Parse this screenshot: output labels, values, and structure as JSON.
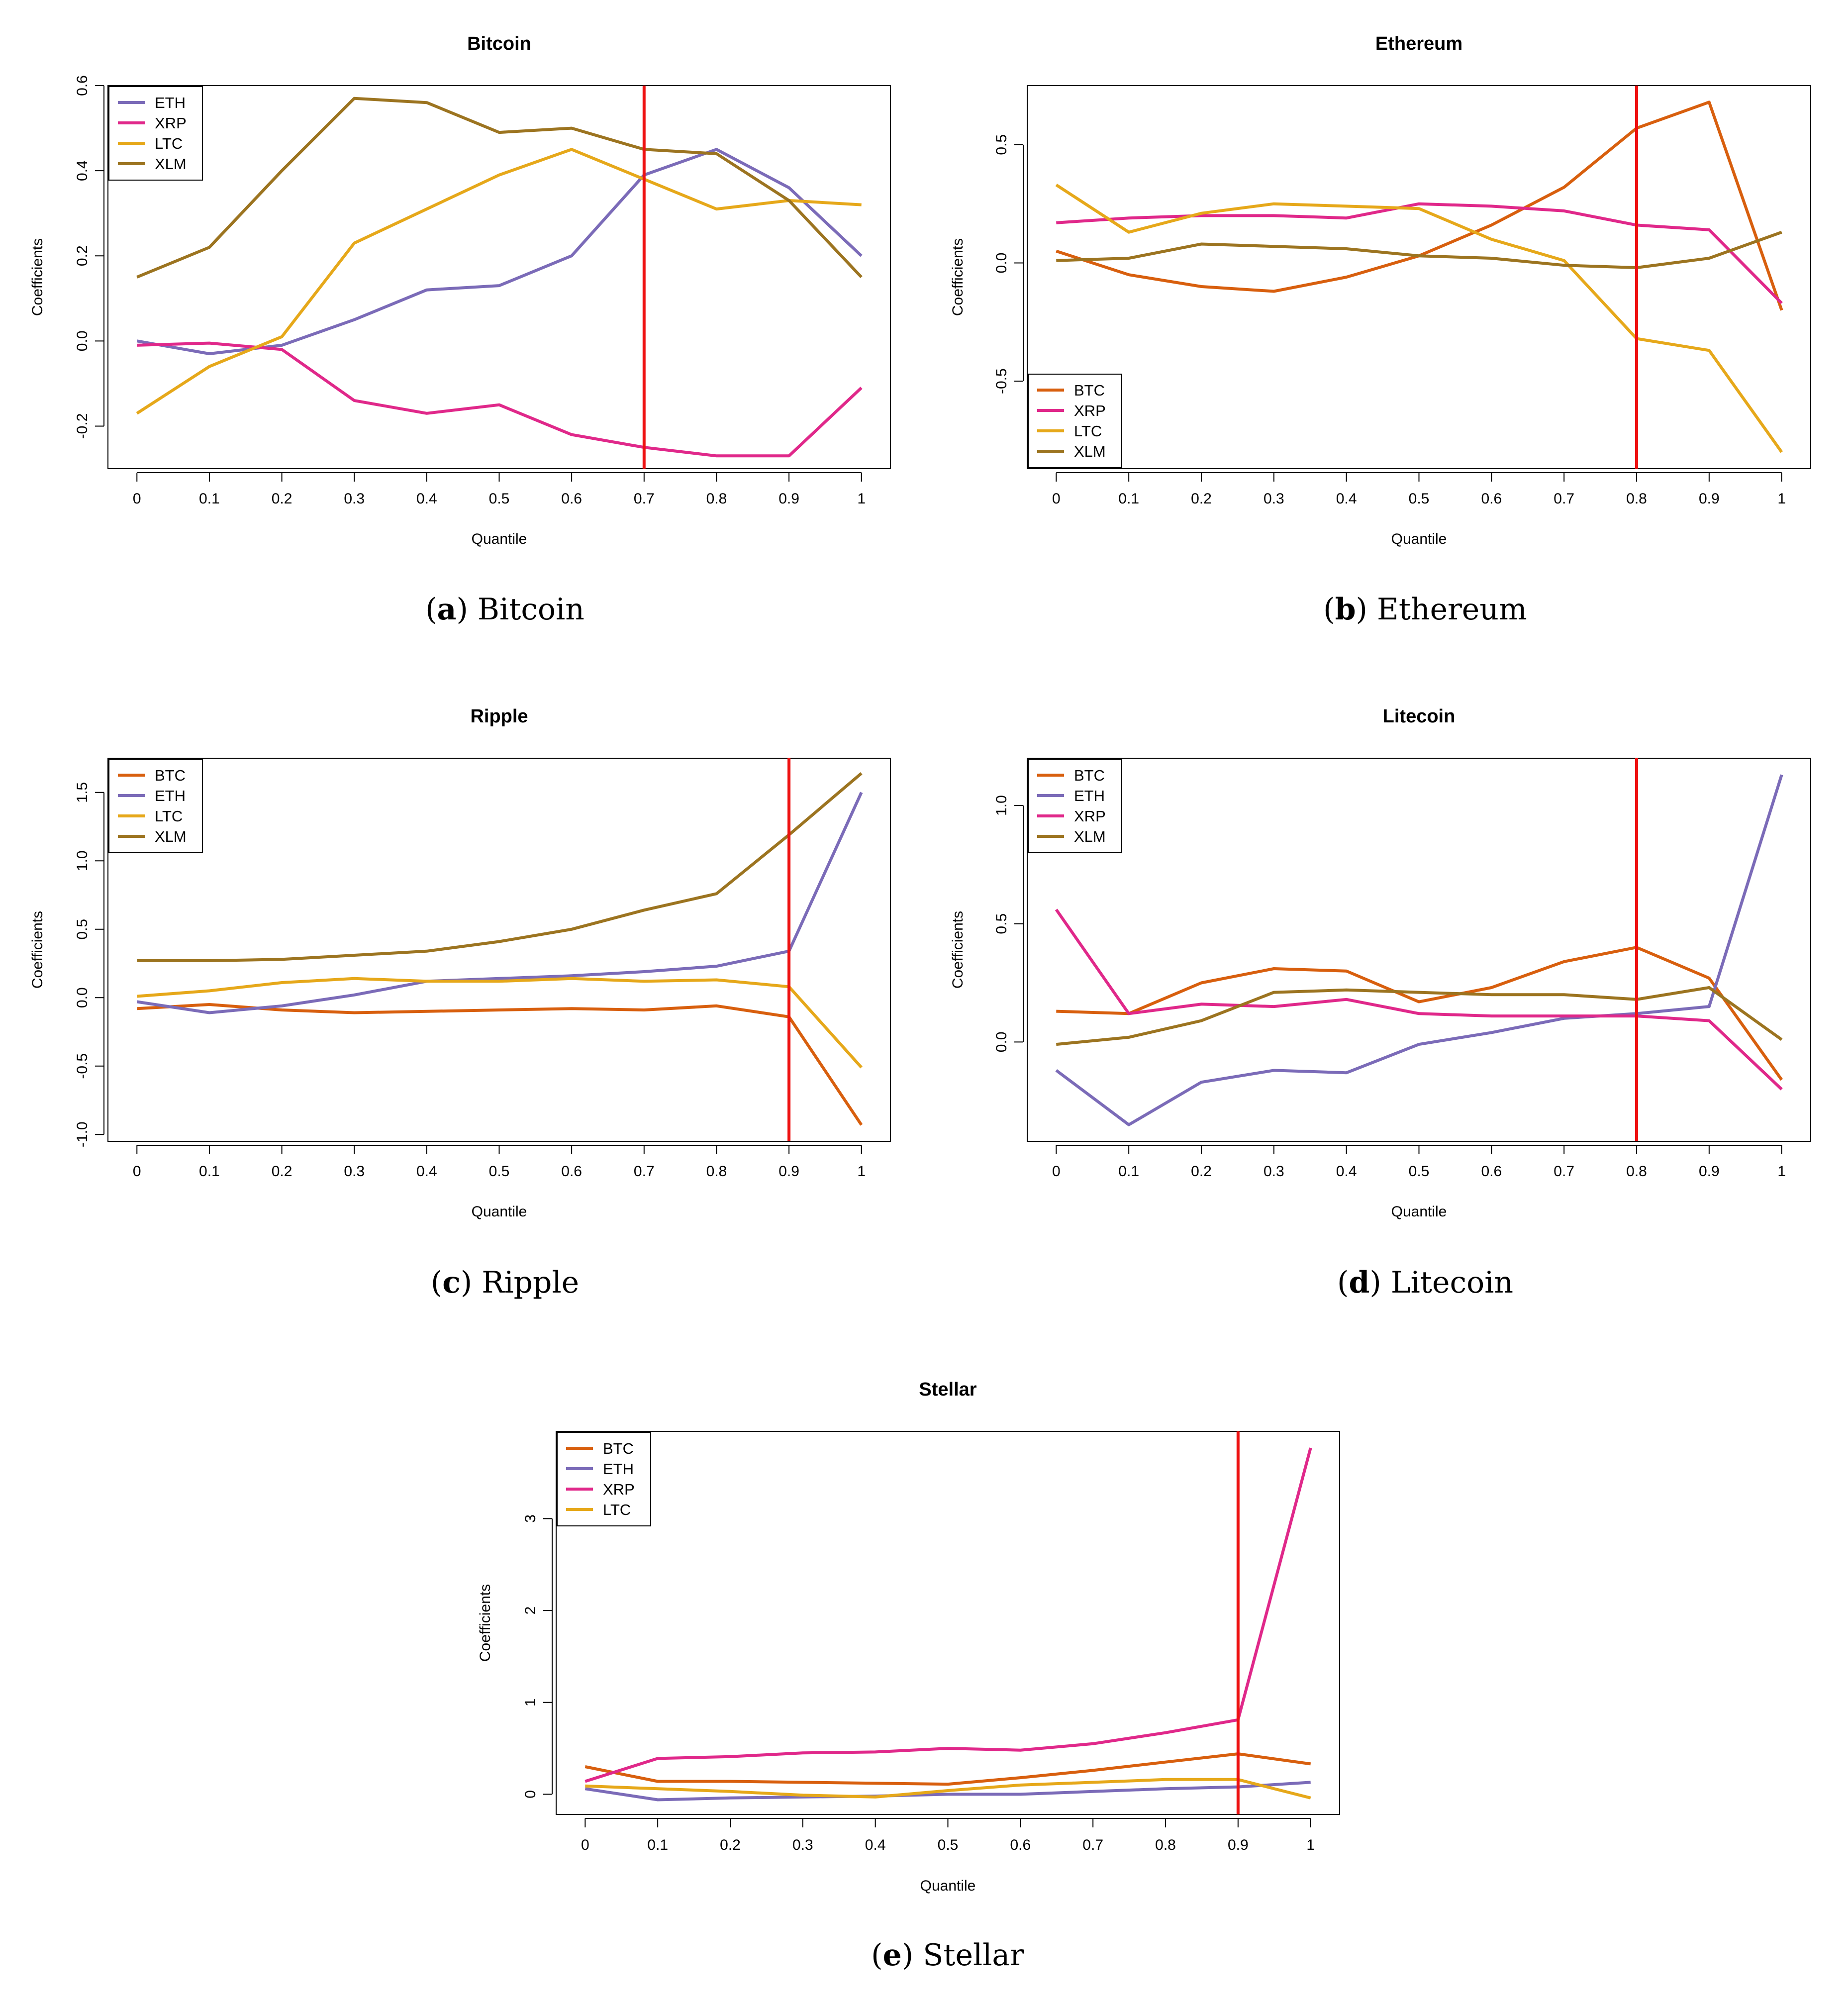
{
  "chart_data": [
    {
      "type": "line",
      "title": "Bitcoin",
      "caption_letter": "a",
      "caption_text": "Bitcoin",
      "xlabel": "Quantile",
      "ylabel": "Coefficients",
      "x": [
        0,
        0.1,
        0.2,
        0.3,
        0.4,
        0.5,
        0.6,
        0.7,
        0.8,
        0.9,
        1
      ],
      "xtick_labels": [
        "0",
        "0.1",
        "0.2",
        "0.3",
        "0.4",
        "0.5",
        "0.6",
        "0.7",
        "0.8",
        "0.9",
        "1"
      ],
      "xlim": [
        -0.04,
        1.04
      ],
      "ylim": [
        -0.3,
        0.6
      ],
      "yticks": [
        -0.2,
        0.0,
        0.2,
        0.4,
        0.6
      ],
      "ytick_labels": [
        "-0.2",
        "0.0",
        "0.2",
        "0.4",
        "0.6"
      ],
      "vline": 0.7,
      "legend_position": "top-left",
      "series": [
        {
          "name": "ETH",
          "color": "#7b6bb8",
          "values": [
            0.0,
            -0.03,
            -0.01,
            0.05,
            0.12,
            0.13,
            0.2,
            0.39,
            0.45,
            0.36,
            0.2
          ]
        },
        {
          "name": "XRP",
          "color": "#e0288a",
          "values": [
            -0.01,
            -0.005,
            -0.02,
            -0.14,
            -0.17,
            -0.15,
            -0.22,
            -0.25,
            -0.27,
            -0.27,
            -0.11
          ]
        },
        {
          "name": "LTC",
          "color": "#e6a81a",
          "values": [
            -0.17,
            -0.06,
            0.01,
            0.23,
            0.31,
            0.39,
            0.45,
            0.38,
            0.31,
            0.33,
            0.32
          ]
        },
        {
          "name": "XLM",
          "color": "#9c7420",
          "values": [
            0.15,
            0.22,
            0.4,
            0.57,
            0.56,
            0.49,
            0.5,
            0.45,
            0.44,
            0.33,
            0.15
          ]
        }
      ]
    },
    {
      "type": "line",
      "title": "Ethereum",
      "caption_letter": "b",
      "caption_text": "Ethereum",
      "xlabel": "Quantile",
      "ylabel": "Coefficients",
      "x": [
        0,
        0.1,
        0.2,
        0.3,
        0.4,
        0.5,
        0.6,
        0.7,
        0.8,
        0.9,
        1
      ],
      "xtick_labels": [
        "0",
        "0.1",
        "0.2",
        "0.3",
        "0.4",
        "0.5",
        "0.6",
        "0.7",
        "0.8",
        "0.9",
        "1"
      ],
      "xlim": [
        -0.04,
        1.04
      ],
      "ylim": [
        -0.87,
        0.75
      ],
      "yticks": [
        -0.5,
        0.0,
        0.5
      ],
      "ytick_labels": [
        "-0.5",
        "0.0",
        "0.5"
      ],
      "vline": 0.8,
      "legend_position": "bottom-left",
      "series": [
        {
          "name": "BTC",
          "color": "#d85f0e",
          "values": [
            0.05,
            -0.05,
            -0.1,
            -0.12,
            -0.06,
            0.03,
            0.16,
            0.32,
            0.57,
            0.68,
            -0.2
          ]
        },
        {
          "name": "XRP",
          "color": "#e0288a",
          "values": [
            0.17,
            0.19,
            0.2,
            0.2,
            0.19,
            0.25,
            0.24,
            0.22,
            0.16,
            0.14,
            -0.17
          ]
        },
        {
          "name": "LTC",
          "color": "#e6a81a",
          "values": [
            0.33,
            0.13,
            0.21,
            0.25,
            0.24,
            0.23,
            0.1,
            0.01,
            -0.32,
            -0.37,
            -0.8
          ]
        },
        {
          "name": "XLM",
          "color": "#9c7420",
          "values": [
            0.01,
            0.02,
            0.08,
            0.07,
            0.06,
            0.03,
            0.02,
            -0.01,
            -0.02,
            0.02,
            0.13
          ]
        }
      ]
    },
    {
      "type": "line",
      "title": "Ripple",
      "caption_letter": "c",
      "caption_text": "Ripple",
      "xlabel": "Quantile",
      "ylabel": "Coefficients",
      "x": [
        0,
        0.1,
        0.2,
        0.3,
        0.4,
        0.5,
        0.6,
        0.7,
        0.8,
        0.9,
        1
      ],
      "xtick_labels": [
        "0",
        "0.1",
        "0.2",
        "0.3",
        "0.4",
        "0.5",
        "0.6",
        "0.7",
        "0.8",
        "0.9",
        "1"
      ],
      "xlim": [
        -0.04,
        1.04
      ],
      "ylim": [
        -1.05,
        1.75
      ],
      "yticks": [
        -1.0,
        -0.5,
        0.0,
        0.5,
        1.0,
        1.5
      ],
      "ytick_labels": [
        "-1.0",
        "-0.5",
        "0.0",
        "0.5",
        "1.0",
        "1.5"
      ],
      "vline": 0.9,
      "legend_position": "top-left",
      "series": [
        {
          "name": "BTC",
          "color": "#d85f0e",
          "values": [
            -0.08,
            -0.05,
            -0.09,
            -0.11,
            -0.1,
            -0.09,
            -0.08,
            -0.09,
            -0.06,
            -0.14,
            -0.93
          ]
        },
        {
          "name": "ETH",
          "color": "#7b6bb8",
          "values": [
            -0.03,
            -0.11,
            -0.06,
            0.02,
            0.12,
            0.14,
            0.16,
            0.19,
            0.23,
            0.34,
            1.5
          ]
        },
        {
          "name": "LTC",
          "color": "#e6a81a",
          "values": [
            0.01,
            0.05,
            0.11,
            0.14,
            0.12,
            0.12,
            0.14,
            0.12,
            0.13,
            0.08,
            -0.51
          ]
        },
        {
          "name": "XLM",
          "color": "#9c7420",
          "values": [
            0.27,
            0.27,
            0.28,
            0.31,
            0.34,
            0.41,
            0.5,
            0.64,
            0.76,
            1.19,
            1.64
          ]
        }
      ]
    },
    {
      "type": "line",
      "title": "Litecoin",
      "caption_letter": "d",
      "caption_text": "Litecoin",
      "xlabel": "Quantile",
      "ylabel": "Coefficients",
      "x": [
        0,
        0.1,
        0.2,
        0.3,
        0.4,
        0.5,
        0.6,
        0.7,
        0.8,
        0.9,
        1
      ],
      "xtick_labels": [
        "0",
        "0.1",
        "0.2",
        "0.3",
        "0.4",
        "0.5",
        "0.6",
        "0.7",
        "0.8",
        "0.9",
        "1"
      ],
      "xlim": [
        -0.04,
        1.04
      ],
      "ylim": [
        -0.42,
        1.2
      ],
      "yticks": [
        0.0,
        0.5,
        1.0
      ],
      "ytick_labels": [
        "0.0",
        "0.5",
        "1.0"
      ],
      "vline": 0.8,
      "legend_position": "top-left",
      "series": [
        {
          "name": "BTC",
          "color": "#d85f0e",
          "values": [
            0.13,
            0.12,
            0.25,
            0.31,
            0.3,
            0.17,
            0.23,
            0.34,
            0.4,
            0.27,
            -0.16
          ]
        },
        {
          "name": "ETH",
          "color": "#7b6bb8",
          "values": [
            -0.12,
            -0.35,
            -0.17,
            -0.12,
            -0.13,
            -0.01,
            0.04,
            0.1,
            0.12,
            0.15,
            1.13
          ]
        },
        {
          "name": "XRP",
          "color": "#e0288a",
          "values": [
            0.56,
            0.12,
            0.16,
            0.15,
            0.18,
            0.12,
            0.11,
            0.11,
            0.11,
            0.09,
            -0.2
          ]
        },
        {
          "name": "XLM",
          "color": "#9c7420",
          "values": [
            -0.01,
            0.02,
            0.09,
            0.21,
            0.22,
            0.21,
            0.2,
            0.2,
            0.18,
            0.23,
            0.01
          ]
        }
      ]
    },
    {
      "type": "line",
      "title": "Stellar",
      "caption_letter": "e",
      "caption_text": "Stellar",
      "xlabel": "Quantile",
      "ylabel": "Coefficients",
      "x": [
        0,
        0.1,
        0.2,
        0.3,
        0.4,
        0.5,
        0.6,
        0.7,
        0.8,
        0.9,
        1
      ],
      "xtick_labels": [
        "0",
        "0.1",
        "0.2",
        "0.3",
        "0.4",
        "0.5",
        "0.6",
        "0.7",
        "0.8",
        "0.9",
        "1"
      ],
      "xlim": [
        -0.04,
        1.04
      ],
      "ylim": [
        -0.22,
        3.95
      ],
      "yticks": [
        0,
        1,
        2,
        3
      ],
      "ytick_labels": [
        "0",
        "1",
        "2",
        "3"
      ],
      "vline": 0.9,
      "legend_position": "top-left",
      "series": [
        {
          "name": "BTC",
          "color": "#d85f0e",
          "values": [
            0.3,
            0.14,
            0.14,
            0.13,
            0.12,
            0.11,
            0.18,
            0.26,
            0.35,
            0.44,
            0.33
          ]
        },
        {
          "name": "ETH",
          "color": "#7b6bb8",
          "values": [
            0.06,
            -0.06,
            -0.04,
            -0.03,
            -0.02,
            0.0,
            0.0,
            0.03,
            0.06,
            0.08,
            0.13
          ]
        },
        {
          "name": "XRP",
          "color": "#e0288a",
          "values": [
            0.14,
            0.39,
            0.41,
            0.45,
            0.46,
            0.5,
            0.48,
            0.55,
            0.67,
            0.81,
            3.77
          ]
        },
        {
          "name": "LTC",
          "color": "#e6a81a",
          "values": [
            0.09,
            0.06,
            0.03,
            -0.01,
            -0.03,
            0.04,
            0.1,
            0.13,
            0.16,
            0.16,
            -0.04
          ]
        }
      ]
    }
  ]
}
